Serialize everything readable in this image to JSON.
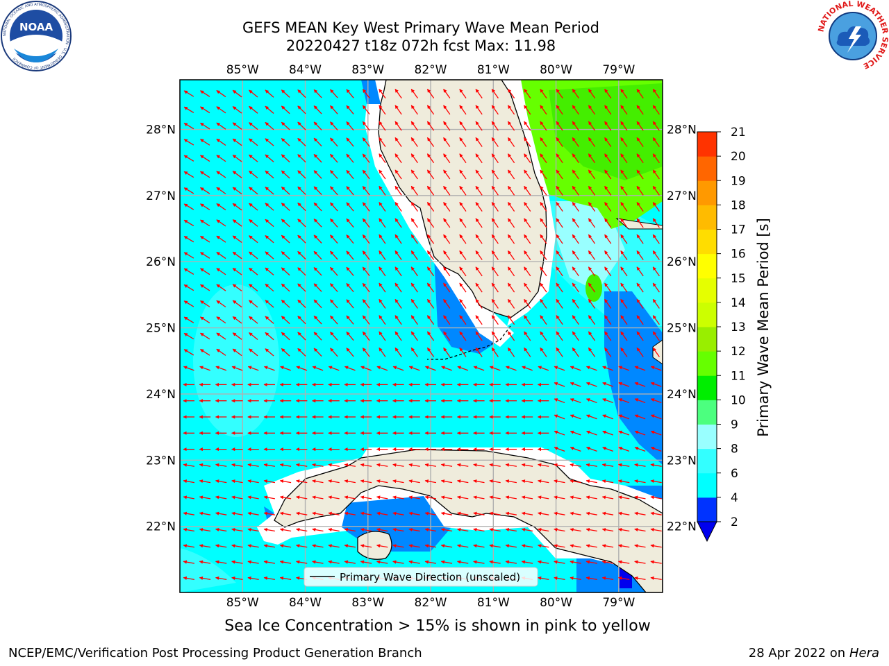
{
  "header": {
    "title_line1": "GEFS MEAN Key West Primary Wave Mean Period",
    "title_line2": "20220427 t18z 072h fcst   Max: 11.98"
  },
  "logos": {
    "left": {
      "name": "noaa-logo",
      "text": "NOAA",
      "ring_text": "NATIONAL OCEANIC AND ATMOSPHERIC ADMINISTRATION · U.S. DEPARTMENT OF COMMERCE"
    },
    "right": {
      "name": "nws-logo",
      "ring_text": "NATIONAL WEATHER SERVICE"
    }
  },
  "map": {
    "lon_range": [
      -86.0,
      -78.3
    ],
    "lat_range": [
      21.0,
      28.75
    ],
    "lon_ticks": [
      "85°W",
      "84°W",
      "83°W",
      "82°W",
      "81°W",
      "80°W",
      "79°W"
    ],
    "lat_ticks": [
      "22°N",
      "23°N",
      "24°N",
      "25°N",
      "26°N",
      "27°N",
      "28°N"
    ],
    "legend_label": "Primary Wave Direction (unscaled)",
    "arrow_color": "#ff0000",
    "land_color": "#efecdc",
    "gridlines": true
  },
  "colorbar": {
    "label": "Primary Wave Mean Period [s]",
    "ticks": [
      "2",
      "4",
      "6",
      "8",
      "9",
      "10",
      "11",
      "12",
      "13",
      "14",
      "15",
      "16",
      "17",
      "18",
      "19",
      "20",
      "21"
    ],
    "colors": [
      "#0033ff",
      "#00ffff",
      "#33ffff",
      "#99ffff",
      "#4cff7f",
      "#00ee00",
      "#66ff00",
      "#99ee00",
      "#ccff00",
      "#e5ff00",
      "#ffff00",
      "#ffdd00",
      "#ffbb00",
      "#ff9900",
      "#ff6600",
      "#ff3300"
    ],
    "under_color": "#0000ee",
    "over_color": "#ff0000"
  },
  "footer": {
    "sea_ice_note": "Sea Ice Concentration > 15% is shown in pink to yellow",
    "left": "NCEP/EMC/Verification Post Processing Product Generation Branch",
    "right_date": "28 Apr 2022 on",
    "right_host": "Hera"
  }
}
